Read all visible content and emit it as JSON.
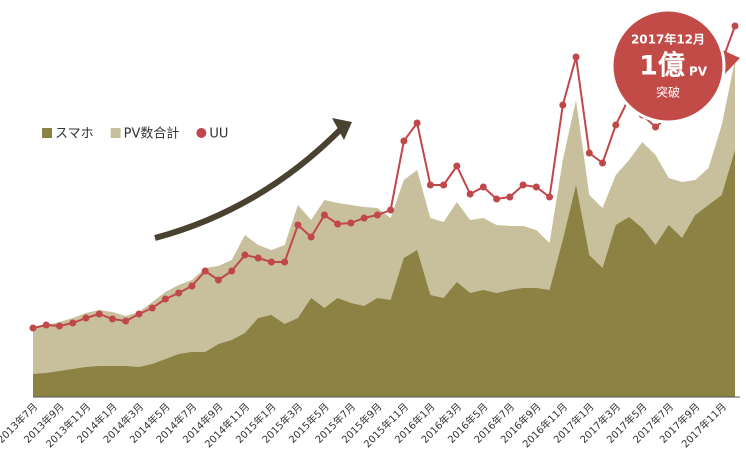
{
  "chart_data": {
    "type": "area",
    "categories": [
      "2013年7月",
      null,
      "2013年9月",
      null,
      "2013年11月",
      null,
      "2014年1月",
      null,
      "2014年3月",
      null,
      "2014年5月",
      null,
      "2014年7月",
      null,
      "2014年9月",
      null,
      "2014年11月",
      null,
      "2015年1月",
      null,
      "2015年3月",
      null,
      "2015年5月",
      null,
      "2015年7月",
      null,
      "2015年9月",
      null,
      "2015年11月",
      null,
      "2016年1月",
      null,
      "2016年3月",
      null,
      "2016年5月",
      null,
      "2016年7月",
      null,
      "2016年9月",
      null,
      "2016年11月",
      null,
      "2017年1月",
      null,
      "2017年3月",
      null,
      "2017年5月",
      null,
      "2017年7月",
      null,
      "2017年9月",
      null,
      "2017年11月",
      null
    ],
    "series": [
      {
        "name": "スマホ",
        "color": "#8b8243",
        "kind": "area",
        "values": [
          23,
          24,
          26,
          28,
          30,
          31,
          31,
          31,
          30,
          33,
          38,
          43,
          45,
          45,
          53,
          57,
          64,
          79,
          82,
          73,
          79,
          99,
          89,
          99,
          94,
          91,
          99,
          97,
          139,
          147,
          102,
          99,
          115,
          104,
          107,
          104,
          107,
          109,
          109,
          107,
          157,
          212,
          142,
          129,
          172,
          180,
          169,
          152,
          172,
          159,
          182,
          192,
          202,
          247
        ]
      },
      {
        "name": "PV数合計",
        "color": "#c8c09c",
        "kind": "area",
        "values": [
          70,
          72,
          75,
          79,
          84,
          87,
          85,
          81,
          85,
          95,
          105,
          112,
          117,
          129,
          131,
          137,
          162,
          152,
          147,
          152,
          192,
          177,
          197,
          194,
          192,
          190,
          189,
          179,
          217,
          227,
          179,
          175,
          195,
          177,
          179,
          172,
          171,
          171,
          167,
          154,
          237,
          297,
          202,
          189,
          222,
          237,
          255,
          242,
          219,
          215,
          217,
          229,
          272,
          337
        ]
      },
      {
        "name": "UU",
        "color": "#c0474a",
        "kind": "line",
        "values": [
          69,
          72,
          71,
          74,
          79,
          83,
          78,
          76,
          83,
          89,
          98,
          104,
          111,
          126,
          117,
          126,
          142,
          139,
          135,
          135,
          172,
          160,
          182,
          173,
          174,
          179,
          182,
          187,
          256,
          274,
          212,
          212,
          231,
          203,
          210,
          198,
          200,
          212,
          210,
          200,
          292,
          340,
          244,
          234,
          272,
          299,
          282,
          270,
          281,
          302,
          317,
          332,
          335,
          371
        ]
      }
    ],
    "ylim": [
      0,
      400
    ],
    "annotation": {
      "date": "2017年12月",
      "value": "1億",
      "unit": "PV",
      "text": "突破"
    }
  }
}
